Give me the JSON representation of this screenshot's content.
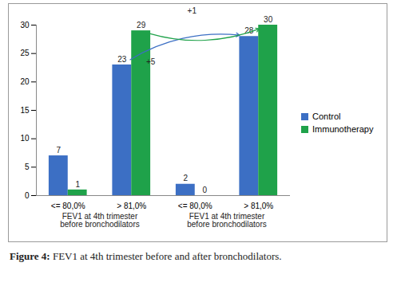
{
  "chart_data": {
    "type": "bar",
    "caption": "Figure 4: FEV1 at 4th trimester before and after bronchodilators.",
    "categories": [
      "<= 80,0%",
      "> 81,0%",
      "<= 80,0%",
      "> 81,0%"
    ],
    "group_labels": [
      "FEV1 at 4th trimester before bronchodilators",
      "FEV1 at 4th trimester before bronchodilators"
    ],
    "series": [
      {
        "name": "Control",
        "color": "#3c6fc4",
        "values": [
          7,
          23,
          2,
          28
        ]
      },
      {
        "name": "Immunotherapy",
        "color": "#1fa24a",
        "values": [
          1,
          29,
          0,
          30
        ]
      }
    ],
    "ylim": [
      0,
      30
    ],
    "yticks": [
      0,
      5,
      10,
      15,
      20,
      25,
      30
    ],
    "grid": false,
    "legend": "right",
    "data_labels": true,
    "annotations": [
      {
        "text": "+5",
        "series": "Control"
      },
      {
        "text": "+1",
        "series": "Immunotherapy"
      }
    ]
  }
}
